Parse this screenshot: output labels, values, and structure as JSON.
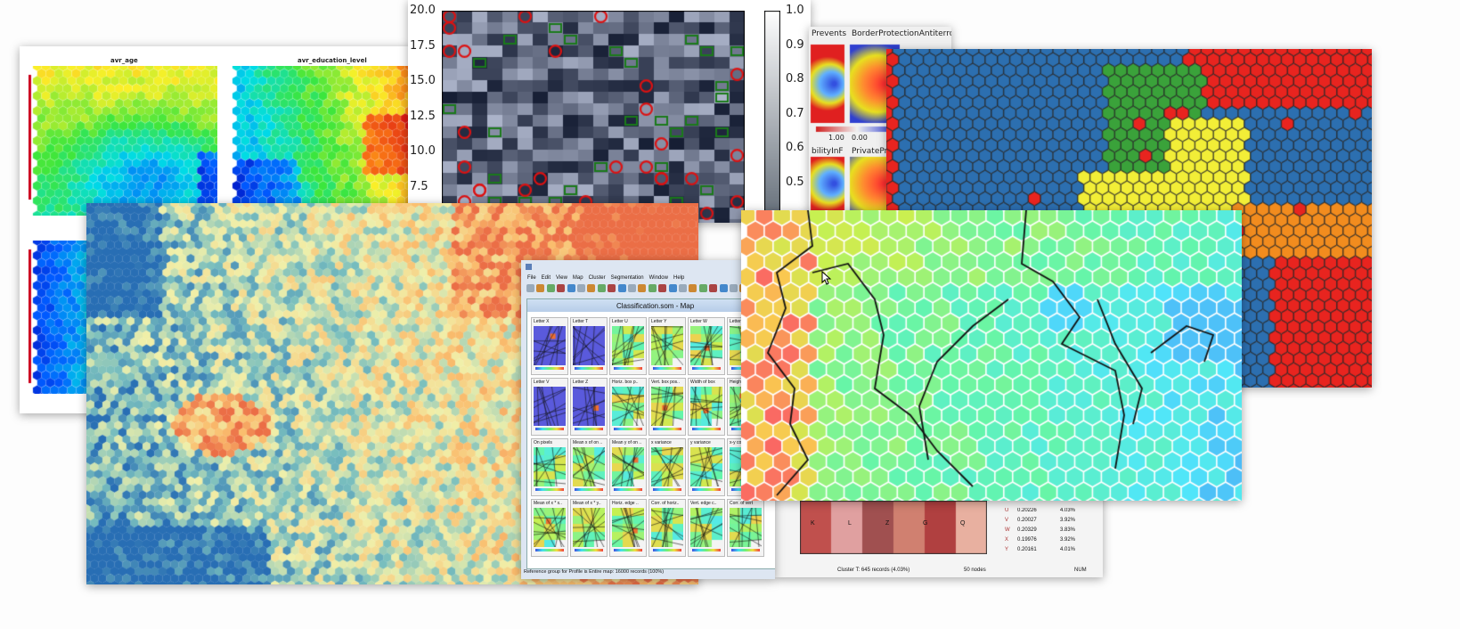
{
  "age_panel": {
    "title_age": "avr_age",
    "title_edu": "avr_education_level"
  },
  "heatmap": {
    "yticks": [
      "20.0",
      "17.5",
      "15.0",
      "12.5",
      "10.0",
      "7.5"
    ],
    "colorbar_ticks": [
      "1.0",
      "0.9",
      "0.8",
      "0.7",
      "0.6",
      "0.5"
    ]
  },
  "component_panel": {
    "title_left": "Prevents",
    "title_right": "BorderProtectionAntiterrori",
    "scale_min": "1.00",
    "scale_max": "0.00",
    "label_bottom_left": "bilityInF",
    "label_bottom_right": "PrivatePro"
  },
  "som_window": {
    "menu": [
      "File",
      "Edit",
      "View",
      "Map",
      "Cluster",
      "Segmentation",
      "Window",
      "Help"
    ],
    "title": "Classification.som - Map",
    "grid_labels": [
      [
        "Letter X",
        "Letter T",
        "Letter U",
        "Letter Y",
        "Letter W",
        "Letter"
      ],
      [
        "Letter V",
        "Letter Z",
        "Horiz. box p..",
        "Vert. box pos..",
        "Width of box",
        "Height"
      ],
      [
        "On pixels",
        "Mean x of on ..",
        "Mean y of on ..",
        "x variance",
        "y variance",
        "x-y corr."
      ],
      [
        "Mean of x * x..",
        "Mean of x * y..",
        "Horiz. edge ..",
        "Corr. of horiz..",
        "Vert. edge c..",
        "Corr. of vert"
      ]
    ],
    "status_left": "Reference group for Profile is Entire map: 16000 records (100%)",
    "status_middle": "Cluster T: 645 records (4.03%)",
    "status_nodes": "50 nodes",
    "status_num": "NUM"
  },
  "cluster_table": {
    "rows": [
      {
        "letter": "U",
        "value": "0.20226",
        "pct": "4.03%"
      },
      {
        "letter": "V",
        "value": "0.20027",
        "pct": "3.92%"
      },
      {
        "letter": "W",
        "value": "0.20329",
        "pct": "3.83%"
      },
      {
        "letter": "X",
        "value": "0.19976",
        "pct": "3.92%"
      },
      {
        "letter": "Y",
        "value": "0.20161",
        "pct": "4.01%"
      }
    ],
    "map_letters": [
      "K",
      "L",
      "Z",
      "G",
      "Q"
    ]
  },
  "colors": {
    "red": "#e8241f",
    "blue": "#2c6fb0",
    "green": "#3aa23a",
    "yellow": "#f2ee37",
    "orange": "#f28c1e"
  }
}
